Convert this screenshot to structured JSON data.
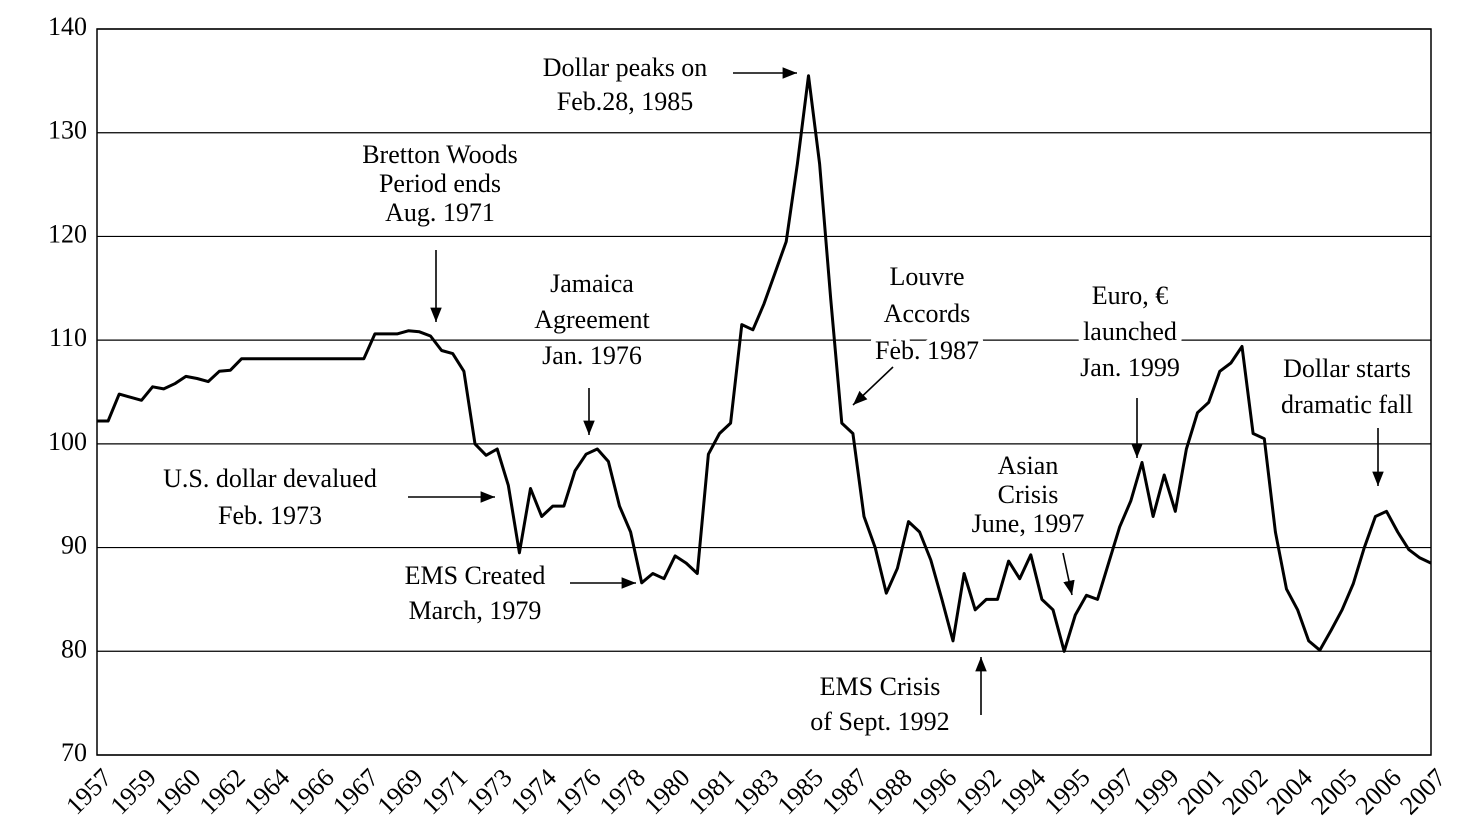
{
  "chart_data": {
    "type": "line",
    "color": "#000000",
    "grid": true,
    "ylim": [
      70,
      140
    ],
    "yticks": [
      70,
      80,
      90,
      100,
      110,
      120,
      130,
      140
    ],
    "categories": [
      "1957",
      null,
      null,
      null,
      "1959",
      null,
      null,
      null,
      "1960",
      null,
      null,
      null,
      "1962",
      null,
      null,
      null,
      "1964",
      null,
      null,
      null,
      "1966",
      null,
      null,
      null,
      "1967",
      null,
      null,
      null,
      "1969",
      null,
      null,
      null,
      "1971",
      null,
      null,
      null,
      "1973",
      null,
      null,
      null,
      "1974",
      null,
      null,
      null,
      "1976",
      null,
      null,
      null,
      "1978",
      null,
      null,
      null,
      "1980",
      null,
      null,
      null,
      "1981",
      null,
      null,
      null,
      "1983",
      null,
      null,
      null,
      "1985",
      null,
      null,
      null,
      "1987",
      null,
      null,
      null,
      "1988",
      null,
      null,
      null,
      "1996",
      null,
      null,
      null,
      "1992",
      null,
      null,
      null,
      "1994",
      null,
      null,
      null,
      "1995",
      null,
      null,
      null,
      "1997",
      null,
      null,
      null,
      "1999",
      null,
      null,
      null,
      "2001",
      null,
      null,
      null,
      "2002",
      null,
      null,
      null,
      "2004",
      null,
      null,
      null,
      "2005",
      null,
      null,
      null,
      "2006",
      null,
      null,
      null,
      "2007"
    ],
    "values": [
      102.2,
      102.2,
      104.8,
      104.5,
      104.2,
      105.5,
      105.3,
      105.8,
      106.5,
      106.3,
      106.0,
      107.0,
      107.1,
      108.2,
      108.2,
      108.2,
      108.2,
      108.2,
      108.2,
      108.2,
      108.2,
      108.2,
      108.2,
      108.2,
      108.2,
      110.6,
      110.6,
      110.6,
      110.9,
      110.8,
      110.4,
      109.0,
      108.7,
      107.0,
      100.0,
      98.9,
      99.5,
      96,
      89.5,
      95.7,
      93,
      94.0,
      94,
      97.4,
      99,
      99.5,
      98.3,
      94,
      91.5,
      86.6,
      87.5,
      87.0,
      89.2,
      88.5,
      87.5,
      99,
      101,
      102,
      111.5,
      111,
      113.5,
      116.5,
      119.5,
      127,
      135.5,
      127,
      114,
      102,
      101,
      93,
      90,
      85.6,
      88,
      92.5,
      91.5,
      88.8,
      85,
      81.0,
      87.5,
      84.0,
      85,
      85,
      88.7,
      87,
      89.3,
      85,
      84,
      80.0,
      83.5,
      85.4,
      85.0,
      88.5,
      92.0,
      94.5,
      98.2,
      93,
      97,
      93.5,
      99.5,
      103,
      104,
      107,
      107.8,
      109.4,
      101,
      100.5,
      91.5,
      86,
      84,
      81,
      80.1,
      82,
      84,
      86.5,
      90,
      93.0,
      93.5,
      91.5,
      89.8,
      89,
      88.5
    ],
    "annotations": [
      {
        "lines": [
          "Dollar peaks on",
          "Feb.28, 1985"
        ]
      },
      {
        "lines": [
          "Bretton Woods",
          "Period ends",
          "Aug. 1971"
        ]
      },
      {
        "lines": [
          "Jamaica",
          "Agreement",
          "Jan. 1976"
        ]
      },
      {
        "lines": [
          "Louvre",
          "Accords",
          "Feb. 1987"
        ]
      },
      {
        "lines": [
          "Euro, €",
          "launched",
          "Jan. 1999"
        ]
      },
      {
        "lines": [
          "Dollar starts",
          "dramatic fall"
        ]
      },
      {
        "lines": [
          "U.S. dollar devalued",
          "Feb. 1973"
        ]
      },
      {
        "lines": [
          "Asian",
          "Crisis",
          "June, 1997"
        ]
      },
      {
        "lines": [
          "EMS Created",
          "March, 1979"
        ]
      },
      {
        "lines": [
          "EMS Crisis",
          "of Sept. 1992"
        ]
      }
    ]
  }
}
